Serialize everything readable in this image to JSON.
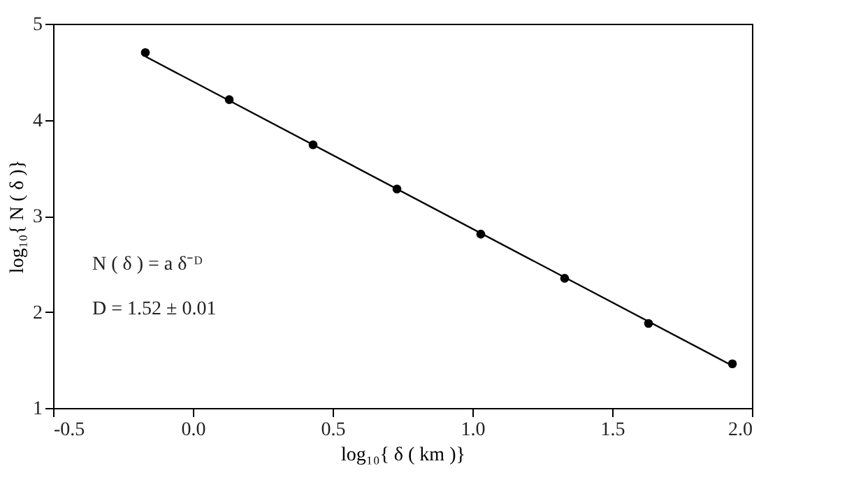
{
  "chart_data": {
    "type": "scatter",
    "xlabel": "log₁₀{ δ ( km )}",
    "ylabel": "log₁₀{ N ( δ )}",
    "x": [
      -0.17,
      0.13,
      0.43,
      0.73,
      1.03,
      1.33,
      1.63,
      1.93
    ],
    "series": [
      {
        "color": "#000000",
        "values": [
          4.7,
          4.21,
          3.74,
          3.28,
          2.81,
          2.35,
          1.88,
          1.46
        ]
      },
      {
        "type": "line",
        "marker": "none",
        "color": "#000000",
        "x": [
          -0.17,
          1.93
        ],
        "values": [
          4.66,
          1.44
        ]
      }
    ],
    "xlim": [
      -0.5,
      2.0
    ],
    "xticks": [
      {
        "value": -0.5,
        "label": "-0.5"
      },
      {
        "value": 0,
        "label": "0.0"
      },
      0.5,
      {
        "value": 1,
        "label": "1.0"
      },
      1.5,
      {
        "value": 2,
        "label": "2.0"
      }
    ],
    "ylim": [
      1,
      5
    ],
    "yticks": [
      1,
      2,
      3,
      4,
      5
    ],
    "annotations": [
      "N ( δ ) = a δ⁻ᴰ",
      "D = 1.52 ± 0.01"
    ],
    "marker": "circle",
    "grid": false
  }
}
